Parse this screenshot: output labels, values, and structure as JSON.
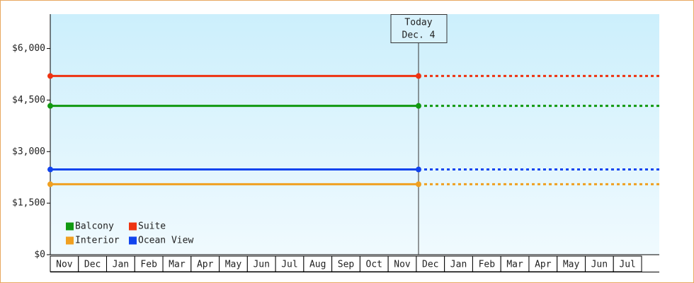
{
  "chart_data": {
    "type": "line",
    "categories": [
      "Nov",
      "Dec",
      "Jan",
      "Feb",
      "Mar",
      "Apr",
      "May",
      "Jun",
      "Jul",
      "Aug",
      "Sep",
      "Oct",
      "Nov",
      "Dec",
      "Jan",
      "Feb",
      "Mar",
      "Apr",
      "May",
      "Jun",
      "Jul"
    ],
    "series": [
      {
        "name": "Balcony",
        "color": "#119911",
        "value": 4330
      },
      {
        "name": "Suite",
        "color": "#ee3311",
        "value": 5200
      },
      {
        "name": "Interior",
        "color": "#f0a020",
        "value": 2050
      },
      {
        "name": "Ocean View",
        "color": "#1144ee",
        "value": 2480
      }
    ],
    "annotation": {
      "title": "Today",
      "date": "Dec. 4"
    },
    "ylim": [
      0,
      7000
    ],
    "yticks": [
      {
        "value": 0,
        "label": "$0"
      },
      {
        "value": 1500,
        "label": "$1,500"
      },
      {
        "value": 3000,
        "label": "$3,000"
      },
      {
        "value": 4500,
        "label": "$4,500"
      },
      {
        "value": 6000,
        "label": "$6,000"
      }
    ]
  }
}
